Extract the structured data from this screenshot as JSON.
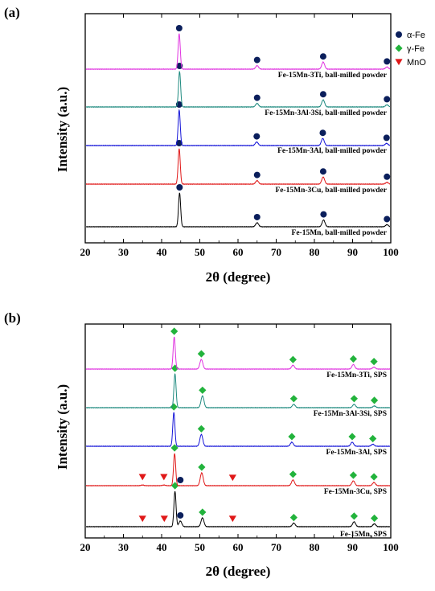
{
  "chart_data": [
    {
      "type": "line",
      "panel": "(a)",
      "xlabel": "2θ (degree)",
      "ylabel": "Intensity (a.u.)",
      "xlim": [
        20,
        100
      ],
      "xticks": [
        20,
        30,
        40,
        50,
        60,
        70,
        80,
        90,
        100
      ],
      "legend": [
        {
          "label": "α-Fe",
          "marker": "circle",
          "color": "#0b1f5c"
        },
        {
          "label": "γ-Fe",
          "marker": "diamond",
          "color": "#22b33c"
        },
        {
          "label": "MnO",
          "marker": "triangle-down",
          "color": "#e01818"
        }
      ],
      "series": [
        {
          "name": "Fe-15Mn, ball-milled powder",
          "color": "#000000",
          "peaks": [
            {
              "x": 44.7,
              "h": 1.0,
              "marker": "circle"
            },
            {
              "x": 65.0,
              "h": 0.12,
              "marker": "circle"
            },
            {
              "x": 82.4,
              "h": 0.2,
              "marker": "circle"
            },
            {
              "x": 99.0,
              "h": 0.06,
              "marker": "circle"
            }
          ]
        },
        {
          "name": "Fe-15Mn-3Cu, ball-milled powder",
          "color": "#e01818",
          "peaks": [
            {
              "x": 44.6,
              "h": 1.0,
              "marker": "circle"
            },
            {
              "x": 65.0,
              "h": 0.1,
              "marker": "circle"
            },
            {
              "x": 82.3,
              "h": 0.2,
              "marker": "circle"
            },
            {
              "x": 99.0,
              "h": 0.05,
              "marker": "circle"
            }
          ]
        },
        {
          "name": "Fe-15Mn-3Al, ball-milled powder",
          "color": "#1515d8",
          "peaks": [
            {
              "x": 44.6,
              "h": 1.0,
              "marker": "circle"
            },
            {
              "x": 64.9,
              "h": 0.1,
              "marker": "circle"
            },
            {
              "x": 82.2,
              "h": 0.2,
              "marker": "circle"
            },
            {
              "x": 98.9,
              "h": 0.06,
              "marker": "circle"
            }
          ]
        },
        {
          "name": "Fe-15Mn-3Al-3Si, ball-milled powder",
          "color": "#1e8a7f",
          "peaks": [
            {
              "x": 44.7,
              "h": 1.0,
              "marker": "circle"
            },
            {
              "x": 65.0,
              "h": 0.1,
              "marker": "circle"
            },
            {
              "x": 82.3,
              "h": 0.2,
              "marker": "circle"
            },
            {
              "x": 99.0,
              "h": 0.06,
              "marker": "circle"
            }
          ]
        },
        {
          "name": "Fe-15Mn-3Ti, ball-milled powder",
          "color": "#e033e0",
          "peaks": [
            {
              "x": 44.6,
              "h": 1.0,
              "marker": "circle"
            },
            {
              "x": 65.0,
              "h": 0.1,
              "marker": "circle"
            },
            {
              "x": 82.3,
              "h": 0.2,
              "marker": "circle"
            },
            {
              "x": 99.0,
              "h": 0.06,
              "marker": "circle"
            }
          ]
        }
      ]
    },
    {
      "type": "line",
      "panel": "(b)",
      "xlabel": "2θ (degree)",
      "ylabel": "Intensity (a.u.)",
      "xlim": [
        20,
        100
      ],
      "xticks": [
        20,
        30,
        40,
        50,
        60,
        70,
        80,
        90,
        100
      ],
      "series": [
        {
          "name": "Fe-15Mn, SPS",
          "color": "#000000",
          "peaks": [
            {
              "x": 43.5,
              "h": 1.0,
              "marker": "diamond"
            },
            {
              "x": 44.9,
              "h": 0.16,
              "marker": "circle"
            },
            {
              "x": 50.7,
              "h": 0.25,
              "marker": "diamond"
            },
            {
              "x": 74.6,
              "h": 0.1,
              "marker": "diamond"
            },
            {
              "x": 90.4,
              "h": 0.14,
              "marker": "diamond"
            },
            {
              "x": 95.7,
              "h": 0.08,
              "marker": "diamond"
            },
            {
              "x": 35.0,
              "h": 0.0,
              "marker": "triangle-down"
            },
            {
              "x": 40.7,
              "h": 0.0,
              "marker": "triangle-down"
            },
            {
              "x": 58.6,
              "h": 0.0,
              "marker": "triangle-down"
            }
          ]
        },
        {
          "name": "Fe-15Mn-3Cu, SPS",
          "color": "#e01818",
          "peaks": [
            {
              "x": 43.4,
              "h": 1.0,
              "marker": "diamond"
            },
            {
              "x": 44.9,
              "h": 0.0,
              "marker": "circle"
            },
            {
              "x": 50.5,
              "h": 0.4,
              "marker": "diamond"
            },
            {
              "x": 74.4,
              "h": 0.18,
              "marker": "diamond"
            },
            {
              "x": 90.2,
              "h": 0.15,
              "marker": "diamond"
            },
            {
              "x": 95.6,
              "h": 0.1,
              "marker": "diamond"
            },
            {
              "x": 35.0,
              "h": 0.02,
              "marker": "triangle-down"
            },
            {
              "x": 40.6,
              "h": 0.02,
              "marker": "triangle-down"
            },
            {
              "x": 58.6,
              "h": 0.0,
              "marker": "triangle-down"
            }
          ]
        },
        {
          "name": "Fe-15Mn-3Al, SPS",
          "color": "#1515d8",
          "peaks": [
            {
              "x": 43.2,
              "h": 1.0,
              "marker": "diamond"
            },
            {
              "x": 50.4,
              "h": 0.35,
              "marker": "diamond"
            },
            {
              "x": 74.1,
              "h": 0.12,
              "marker": "diamond"
            },
            {
              "x": 89.9,
              "h": 0.12,
              "marker": "diamond"
            },
            {
              "x": 95.3,
              "h": 0.06,
              "marker": "diamond"
            }
          ]
        },
        {
          "name": "Fe-15Mn-3Al-3Si, SPS",
          "color": "#1e8a7f",
          "peaks": [
            {
              "x": 43.5,
              "h": 1.0,
              "marker": "diamond"
            },
            {
              "x": 50.7,
              "h": 0.35,
              "marker": "diamond"
            },
            {
              "x": 74.6,
              "h": 0.1,
              "marker": "diamond"
            },
            {
              "x": 90.4,
              "h": 0.1,
              "marker": "diamond"
            },
            {
              "x": 95.7,
              "h": 0.05,
              "marker": "diamond"
            }
          ]
        },
        {
          "name": "Fe-15Mn-3Ti, SPS",
          "color": "#e033e0",
          "peaks": [
            {
              "x": 43.3,
              "h": 1.0,
              "marker": "diamond"
            },
            {
              "x": 50.4,
              "h": 0.3,
              "marker": "diamond"
            },
            {
              "x": 74.4,
              "h": 0.12,
              "marker": "diamond"
            },
            {
              "x": 90.2,
              "h": 0.14,
              "marker": "diamond"
            },
            {
              "x": 95.6,
              "h": 0.06,
              "marker": "diamond"
            }
          ]
        }
      ]
    }
  ]
}
